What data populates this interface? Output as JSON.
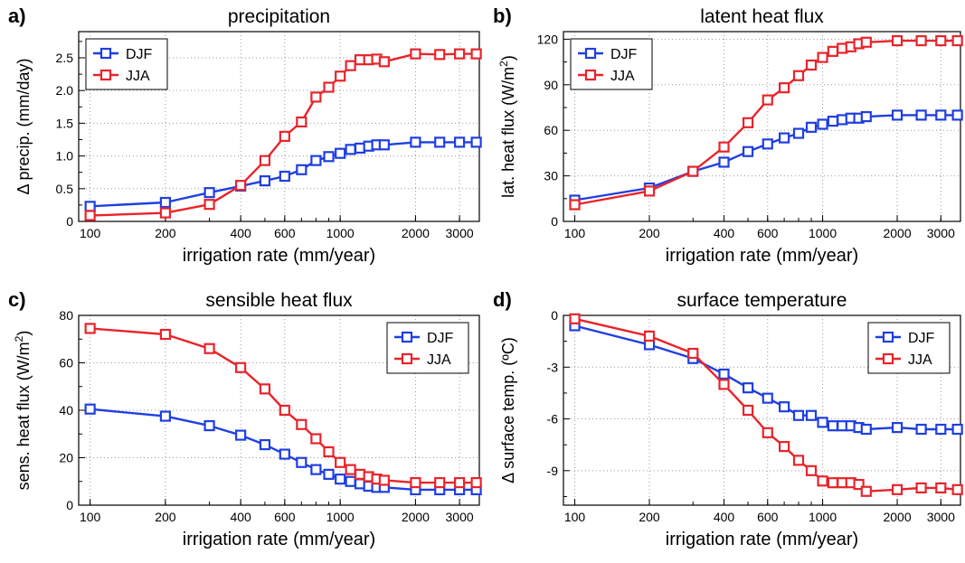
{
  "chart_data": [
    {
      "type": "line",
      "panel_label": "a)",
      "title": "precipitation",
      "xlabel": "irrigation rate (mm/year)",
      "ylabel": "Δ precip. (mm/day)",
      "xscale": "log",
      "xlim": [
        90,
        3600
      ],
      "ylim": [
        0,
        2.9
      ],
      "xticks": [
        100,
        200,
        400,
        600,
        1000,
        2000,
        3000
      ],
      "yticks": [
        0,
        0.5,
        1.0,
        1.5,
        2.0,
        2.5
      ],
      "ytick_labels": [
        "0",
        "0.5",
        "1.0",
        "1.5",
        "2.0",
        "2.5"
      ],
      "legend_position": "top-left",
      "grid": true,
      "x": [
        100,
        200,
        300,
        400,
        500,
        600,
        700,
        800,
        900,
        1000,
        1100,
        1200,
        1300,
        1400,
        1500,
        2000,
        2500,
        3000,
        3500
      ],
      "series": [
        {
          "name": "DJF",
          "color": "#1f3fe0",
          "values": [
            0.23,
            0.29,
            0.44,
            0.54,
            0.62,
            0.69,
            0.79,
            0.93,
            0.99,
            1.04,
            1.1,
            1.12,
            1.15,
            1.17,
            1.17,
            1.21,
            1.21,
            1.21,
            1.21
          ]
        },
        {
          "name": "JJA",
          "color": "#e8242b",
          "values": [
            0.09,
            0.13,
            0.26,
            0.55,
            0.93,
            1.3,
            1.52,
            1.9,
            2.05,
            2.22,
            2.38,
            2.47,
            2.47,
            2.48,
            2.44,
            2.56,
            2.55,
            2.56,
            2.56
          ]
        }
      ]
    },
    {
      "type": "line",
      "panel_label": "b)",
      "title": "latent heat flux",
      "xlabel": "irrigation rate (mm/year)",
      "ylabel": "lat. heat flux (W/m",
      "ylabel_sup": "2",
      "ylabel_end": ")",
      "xscale": "log",
      "xlim": [
        90,
        3600
      ],
      "ylim": [
        0,
        125
      ],
      "xticks": [
        100,
        200,
        400,
        600,
        1000,
        2000,
        3000
      ],
      "yticks": [
        0,
        30,
        60,
        90,
        120
      ],
      "ytick_labels": [
        "0",
        "30",
        "60",
        "90",
        "120"
      ],
      "legend_position": "top-left",
      "grid": true,
      "x": [
        100,
        200,
        300,
        400,
        500,
        600,
        700,
        800,
        900,
        1000,
        1100,
        1200,
        1300,
        1400,
        1500,
        2000,
        2500,
        3000,
        3500
      ],
      "series": [
        {
          "name": "DJF",
          "color": "#1f3fe0",
          "values": [
            14,
            22,
            33,
            39,
            46,
            51,
            55,
            58,
            62,
            64,
            66,
            67,
            68,
            68,
            69,
            70,
            70,
            70,
            70
          ]
        },
        {
          "name": "JJA",
          "color": "#e8242b",
          "values": [
            11,
            20,
            33,
            49,
            65,
            80,
            88,
            96,
            103,
            108,
            112,
            114,
            115,
            117,
            118,
            119,
            119,
            119,
            119
          ]
        }
      ]
    },
    {
      "type": "line",
      "panel_label": "c)",
      "title": "sensible heat flux",
      "xlabel": "irrigation rate (mm/year)",
      "ylabel": "sens. heat flux (W/m",
      "ylabel_sup": "2",
      "ylabel_end": ")",
      "xscale": "log",
      "xlim": [
        90,
        3600
      ],
      "ylim": [
        0,
        80
      ],
      "xticks": [
        100,
        200,
        400,
        600,
        1000,
        2000,
        3000
      ],
      "yticks": [
        0,
        20,
        40,
        60,
        80
      ],
      "ytick_labels": [
        "0",
        "20",
        "40",
        "60",
        "80"
      ],
      "legend_position": "top-right",
      "grid": true,
      "x": [
        100,
        200,
        300,
        400,
        500,
        600,
        700,
        800,
        900,
        1000,
        1100,
        1200,
        1300,
        1400,
        1500,
        2000,
        2500,
        3000,
        3500
      ],
      "series": [
        {
          "name": "DJF",
          "color": "#1f3fe0",
          "values": [
            40.5,
            37.5,
            33.5,
            29.5,
            25.5,
            21.5,
            18,
            15,
            13,
            11,
            10,
            9,
            8,
            7.5,
            7.5,
            6.5,
            6.5,
            6.5,
            6.5
          ]
        },
        {
          "name": "JJA",
          "color": "#e8242b",
          "values": [
            74.5,
            72,
            66,
            58,
            49,
            40,
            34,
            28,
            22.5,
            18,
            15,
            13,
            12,
            11,
            10.5,
            9.5,
            9.5,
            9.5,
            9.5
          ]
        }
      ]
    },
    {
      "type": "line",
      "panel_label": "d)",
      "title": "surface temperature",
      "xlabel": "irrigation rate (mm/year)",
      "ylabel": "Δ surface temp. (ºC)",
      "xscale": "log",
      "xlim": [
        90,
        3600
      ],
      "ylim": [
        -11,
        0
      ],
      "xticks": [
        100,
        200,
        400,
        600,
        1000,
        2000,
        3000
      ],
      "yticks": [
        0,
        -3,
        -6,
        -9
      ],
      "ytick_labels": [
        "0",
        "-3",
        "-6",
        "-9"
      ],
      "legend_position": "top-right",
      "grid": true,
      "x": [
        100,
        200,
        300,
        400,
        500,
        600,
        700,
        800,
        900,
        1000,
        1100,
        1200,
        1300,
        1400,
        1500,
        2000,
        2500,
        3000,
        3500
      ],
      "series": [
        {
          "name": "DJF",
          "color": "#1f3fe0",
          "values": [
            -0.6,
            -1.7,
            -2.5,
            -3.4,
            -4.2,
            -4.8,
            -5.3,
            -5.8,
            -5.8,
            -6.2,
            -6.4,
            -6.4,
            -6.4,
            -6.5,
            -6.6,
            -6.5,
            -6.6,
            -6.6,
            -6.6
          ]
        },
        {
          "name": "JJA",
          "color": "#e8242b",
          "values": [
            -0.2,
            -1.2,
            -2.2,
            -4.0,
            -5.5,
            -6.8,
            -7.6,
            -8.4,
            -9.0,
            -9.6,
            -9.7,
            -9.7,
            -9.7,
            -9.8,
            -10.2,
            -10.1,
            -10.0,
            -10.0,
            -10.1
          ]
        }
      ]
    }
  ]
}
